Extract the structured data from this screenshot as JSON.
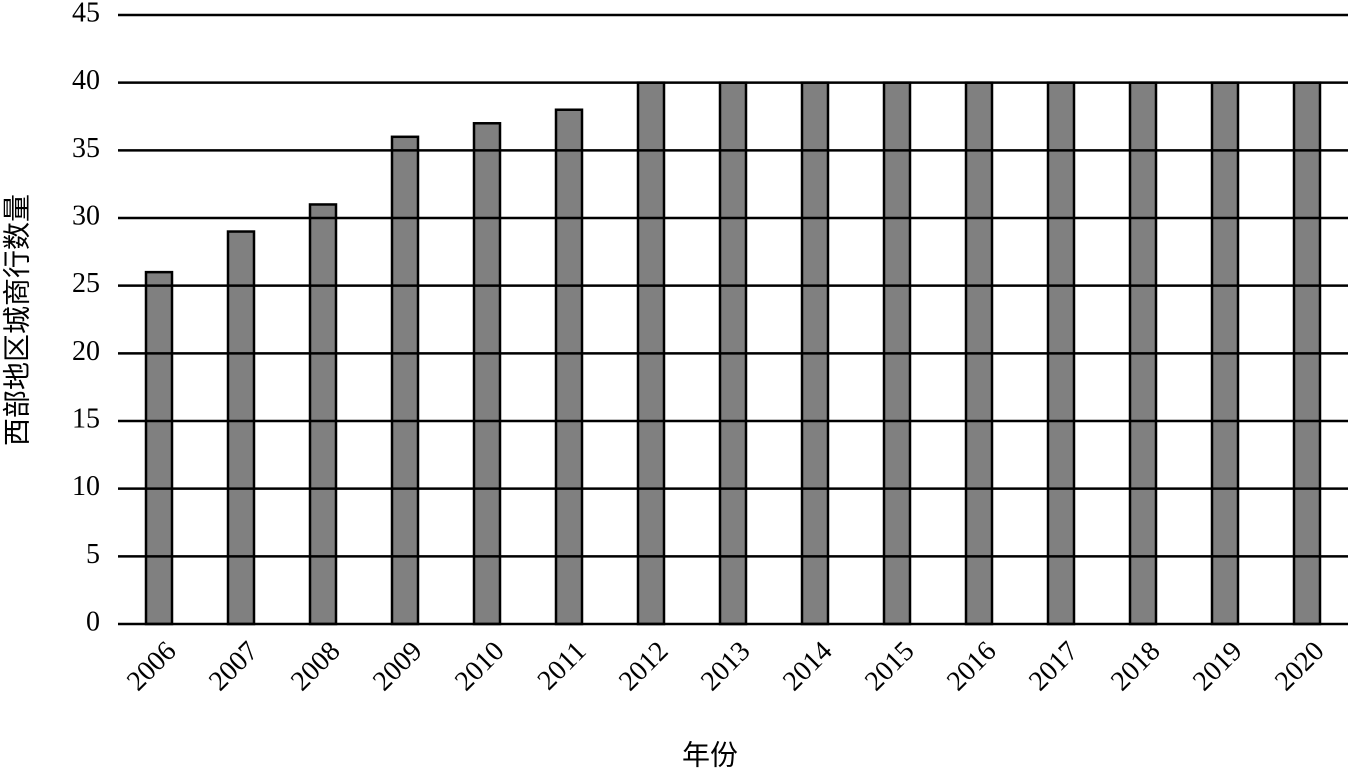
{
  "chart_data": {
    "type": "bar",
    "x_label": "年份",
    "y_label": "西部地区城商行数量",
    "categories": [
      "2006",
      "2007",
      "2008",
      "2009",
      "2010",
      "2011",
      "2012",
      "2013",
      "2014",
      "2015",
      "2016",
      "2017",
      "2018",
      "2019",
      "2020"
    ],
    "values": [
      26,
      29,
      31,
      36,
      37,
      38,
      40,
      40,
      40,
      40,
      40,
      40,
      40,
      40,
      40
    ],
    "color": "#808080",
    "ylim": [
      0,
      45
    ],
    "yticks": [
      0,
      5,
      10,
      15,
      20,
      25,
      30,
      35,
      40,
      45
    ],
    "grid": true
  }
}
